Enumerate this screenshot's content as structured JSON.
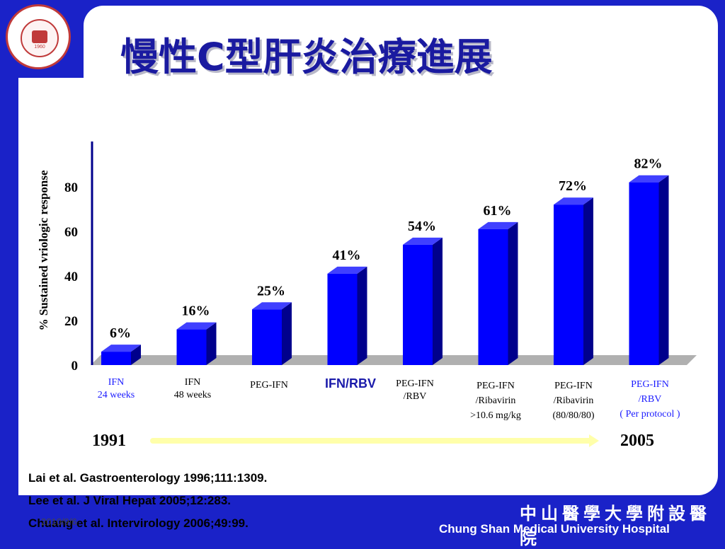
{
  "slide": {
    "title": "慢性C型肝炎治療進展",
    "logo_year": "1960",
    "date_stamp": "2010/9/6",
    "hospital_zh": "中山醫學大學附設醫院",
    "hospital_en": "Chung Shan Medical University Hospital"
  },
  "timeline": {
    "start": "1991",
    "end": "2005"
  },
  "references": [
    "Lai et al. Gastroenterology 1996;111:1309.",
    "Lee et al. J Viral Hepat 2005;12:283.",
    "Chuang et al. Intervirology 2006;49:99."
  ],
  "chart_data": {
    "type": "bar",
    "title": "",
    "xlabel": "",
    "ylabel": "% Sustained vriologic response",
    "ylim": [
      0,
      100
    ],
    "yticks": [
      0,
      20,
      40,
      60,
      80
    ],
    "grid": false,
    "categories": [
      [
        "IFN",
        "24 weeks"
      ],
      [
        "IFN",
        "48 weeks"
      ],
      [
        "PEG-IFN"
      ],
      [
        "IFN/RBV"
      ],
      [
        "PEG-IFN",
        "/RBV"
      ],
      [
        "PEG-IFN",
        "/Ribavirin",
        ">10.6 mg/kg"
      ],
      [
        "PEG-IFN",
        "/Ribavirin",
        "(80/80/80)"
      ],
      [
        "PEG-IFN",
        "/RBV",
        "( Per protocol )"
      ]
    ],
    "values": [
      6,
      16,
      25,
      41,
      54,
      61,
      72,
      82
    ],
    "value_labels": [
      "6%",
      "16%",
      "25%",
      "41%",
      "54%",
      "61%",
      "72%",
      "82%"
    ],
    "colors": {
      "bar_front": "#0000ff",
      "bar_side": "#00008c",
      "bar_top": "#4040ff",
      "floor": "#b0b0b0",
      "category_blue": "#1a1aff"
    }
  }
}
